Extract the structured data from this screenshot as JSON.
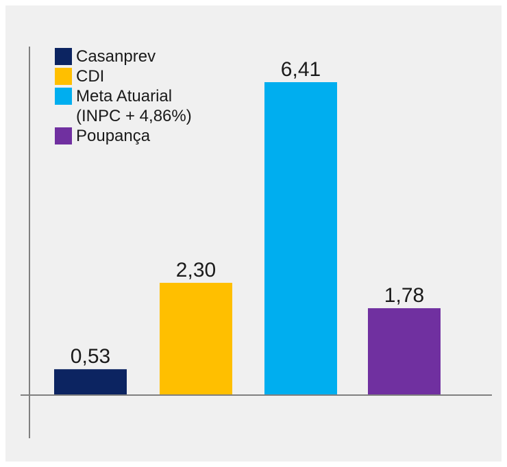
{
  "chart_data": {
    "type": "bar",
    "title": "",
    "xlabel": "",
    "ylabel": "",
    "categories": [
      "Casanprev",
      "CDI",
      "Meta Atuarial\n(INPC + 4,86%)",
      "Poupança"
    ],
    "values": [
      0.53,
      2.3,
      6.41,
      1.78
    ],
    "data_labels": [
      "0,53",
      "2,30",
      "6,41",
      "1,78"
    ],
    "colors": [
      "#0c2461",
      "#ffbf00",
      "#00aeef",
      "#7030a0"
    ],
    "ylim": [
      0,
      6.41
    ],
    "grid": false,
    "legend_position": "top-left"
  }
}
